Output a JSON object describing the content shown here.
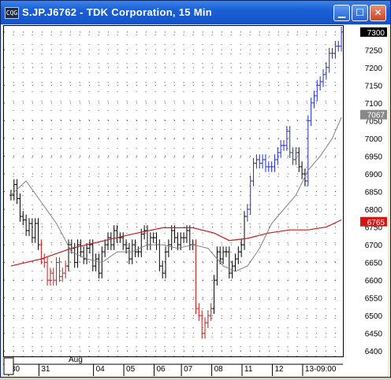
{
  "window": {
    "title": "S.JP.J6762 - TDK Corporation, 15 Min",
    "app_icon": "cqg-icon",
    "app_icon_text": "CQG",
    "buttons": {
      "minimize": "minimize-icon",
      "maximize": "maximize-icon",
      "close": "close-icon"
    }
  },
  "colors": {
    "background": "#ffffff",
    "grid_dot": "#555555",
    "price_bar": "#000000",
    "price_bar_up_trend": "#1f2fd0",
    "price_bar_down_trend": "#d01818",
    "slow_ma": "#d01818",
    "fast_ma": "#808080",
    "last_price_tag": "#000000",
    "fast_ma_tag": "#888888",
    "slow_ma_tag": "#d01818"
  },
  "chart_data": {
    "type": "ohlc",
    "title": "S.JP.J6762 - TDK Corporation, 15 Min",
    "xlabel": "",
    "ylabel": "",
    "ylim": [
      6385,
      7315
    ],
    "y_ticks": [
      7300,
      7250,
      7200,
      7150,
      7100,
      7050,
      7000,
      6950,
      6900,
      6850,
      6800,
      6750,
      6700,
      6650,
      6600,
      6550,
      6500,
      6450,
      6400
    ],
    "x_labels": [
      {
        "label": "30",
        "bar": 0
      },
      {
        "label": "31",
        "bar": 10
      },
      {
        "label": "04",
        "bar": 28
      },
      {
        "label": "05",
        "bar": 38
      },
      {
        "label": "06",
        "bar": 48
      },
      {
        "label": "07",
        "bar": 57
      },
      {
        "label": "08",
        "bar": 67
      },
      {
        "label": "11",
        "bar": 77
      },
      {
        "label": "12",
        "bar": 87
      },
      {
        "label": "13-09:00",
        "bar": 97
      }
    ],
    "month_label": {
      "label": "Aug",
      "bar": 19
    },
    "grid": true,
    "series": [
      {
        "name": "price",
        "style": "ohlc",
        "close": [
          6840,
          6870,
          6830,
          6780,
          6770,
          6740,
          6760,
          6720,
          6760,
          6700,
          6660,
          6650,
          6600,
          6620,
          6600,
          6650,
          6610,
          6620,
          6640,
          6700,
          6690,
          6650,
          6700,
          6680,
          6660,
          6690,
          6700,
          6640,
          6660,
          6620,
          6680,
          6700,
          6720,
          6700,
          6740,
          6720,
          6720,
          6700,
          6690,
          6660,
          6700,
          6680,
          6680,
          6730,
          6740,
          6700,
          6720,
          6720,
          6700,
          6640,
          6620,
          6680,
          6700,
          6740,
          6720,
          6700,
          6720,
          6720,
          6740,
          6700,
          6700,
          6520,
          6500,
          6450,
          6480,
          6500,
          6520,
          6600,
          6680,
          6660,
          6680,
          6680,
          6620,
          6640,
          6660,
          6680,
          6700,
          6780,
          6800,
          6880,
          6930,
          6940,
          6930,
          6940,
          6920,
          6920,
          6920,
          6940,
          6960,
          6980,
          6980,
          7020,
          6960,
          6940,
          6960,
          6920,
          6900,
          6880,
          7050,
          7100,
          7120,
          7150,
          7160,
          7180,
          7200,
          7240,
          7240,
          7260,
          7260,
          7300
        ],
        "color_ranges": [
          {
            "from": 0,
            "to": 9,
            "color": "price_bar"
          },
          {
            "from": 10,
            "to": 18,
            "color": "price_bar_down_trend"
          },
          {
            "from": 19,
            "to": 60,
            "color": "price_bar"
          },
          {
            "from": 61,
            "to": 66,
            "color": "price_bar_down_trend"
          },
          {
            "from": 67,
            "to": 77,
            "color": "price_bar"
          },
          {
            "from": 78,
            "to": 94,
            "color": "price_bar_up_trend"
          },
          {
            "from": 95,
            "to": 97,
            "color": "price_bar"
          },
          {
            "from": 98,
            "to": 109,
            "color": "price_bar_up_trend"
          }
        ]
      },
      {
        "name": "slow_ma",
        "style": "line",
        "color": "slow_ma",
        "points": [
          [
            0,
            6640
          ],
          [
            10,
            6660
          ],
          [
            20,
            6690
          ],
          [
            30,
            6710
          ],
          [
            40,
            6730
          ],
          [
            50,
            6748
          ],
          [
            60,
            6748
          ],
          [
            67,
            6733
          ],
          [
            72,
            6712
          ],
          [
            78,
            6718
          ],
          [
            85,
            6733
          ],
          [
            92,
            6742
          ],
          [
            98,
            6742
          ],
          [
            104,
            6750
          ],
          [
            109,
            6770
          ]
        ]
      },
      {
        "name": "fast_ma",
        "style": "line",
        "color": "fast_ma",
        "points": [
          [
            0,
            6840
          ],
          [
            5,
            6880
          ],
          [
            10,
            6820
          ],
          [
            15,
            6760
          ],
          [
            20,
            6680
          ],
          [
            25,
            6660
          ],
          [
            30,
            6650
          ],
          [
            35,
            6680
          ],
          [
            40,
            6680
          ],
          [
            45,
            6700
          ],
          [
            50,
            6700
          ],
          [
            55,
            6690
          ],
          [
            60,
            6700
          ],
          [
            65,
            6690
          ],
          [
            70,
            6640
          ],
          [
            74,
            6625
          ],
          [
            78,
            6640
          ],
          [
            82,
            6690
          ],
          [
            86,
            6760
          ],
          [
            90,
            6800
          ],
          [
            94,
            6840
          ],
          [
            98,
            6910
          ],
          [
            102,
            6950
          ],
          [
            106,
            7000
          ],
          [
            109,
            7060
          ]
        ]
      }
    ],
    "price_tags": [
      {
        "value": 7300,
        "label": "7300",
        "color": "last_price_tag"
      },
      {
        "value": 7067,
        "label": "7067",
        "color": "fast_ma_tag"
      },
      {
        "value": 6765,
        "label": "6765",
        "color": "slow_ma_tag"
      }
    ]
  }
}
